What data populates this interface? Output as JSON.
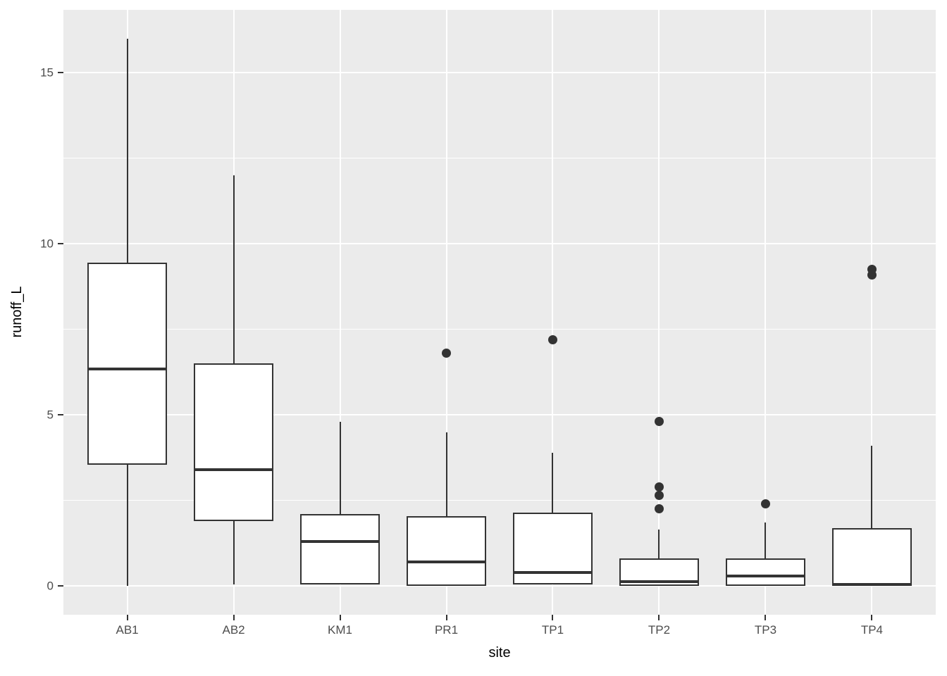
{
  "chart_data": {
    "type": "boxplot",
    "title": "",
    "xlabel": "site",
    "ylabel": "runoff_L",
    "categories": [
      "AB1",
      "AB2",
      "KM1",
      "PR1",
      "TP1",
      "TP2",
      "TP3",
      "TP4"
    ],
    "y_ticks": [
      0,
      5,
      10,
      15
    ],
    "y_minor_ticks": [
      2.5,
      7.5,
      12.5
    ],
    "ylim": [
      -0.84,
      16.84
    ],
    "grid": "on",
    "series": [
      {
        "site": "AB1",
        "whisker_low": 0.0,
        "q1": 3.55,
        "median": 6.35,
        "q3": 9.45,
        "whisker_high": 16.0,
        "outliers": []
      },
      {
        "site": "AB2",
        "whisker_low": 0.05,
        "q1": 1.9,
        "median": 3.4,
        "q3": 6.5,
        "whisker_high": 12.0,
        "outliers": []
      },
      {
        "site": "KM1",
        "whisker_low": 0.05,
        "q1": 0.05,
        "median": 1.3,
        "q3": 2.1,
        "whisker_high": 4.8,
        "outliers": []
      },
      {
        "site": "PR1",
        "whisker_low": 0.0,
        "q1": 0.0,
        "median": 0.7,
        "q3": 2.05,
        "whisker_high": 4.5,
        "outliers": [
          6.8
        ]
      },
      {
        "site": "TP1",
        "whisker_low": 0.05,
        "q1": 0.05,
        "median": 0.4,
        "q3": 2.15,
        "whisker_high": 3.9,
        "outliers": [
          7.2
        ]
      },
      {
        "site": "TP2",
        "whisker_low": 0.0,
        "q1": 0.0,
        "median": 0.12,
        "q3": 0.8,
        "whisker_high": 1.65,
        "outliers": [
          2.25,
          2.65,
          2.9,
          4.8
        ]
      },
      {
        "site": "TP3",
        "whisker_low": 0.0,
        "q1": 0.0,
        "median": 0.3,
        "q3": 0.8,
        "whisker_high": 1.85,
        "outliers": [
          2.4
        ]
      },
      {
        "site": "TP4",
        "whisker_low": 0.0,
        "q1": 0.0,
        "median": 0.05,
        "q3": 1.7,
        "whisker_high": 4.1,
        "outliers": [
          9.1,
          9.25
        ]
      }
    ],
    "colors": {
      "panel_bg": "#ebebeb",
      "grid": "#ffffff",
      "box_border": "#333333",
      "box_fill": "#ffffff",
      "outlier": "#333333",
      "tick_label": "#4d4d4d",
      "axis_title": "#000000",
      "page_bg": "#ffffff"
    }
  }
}
